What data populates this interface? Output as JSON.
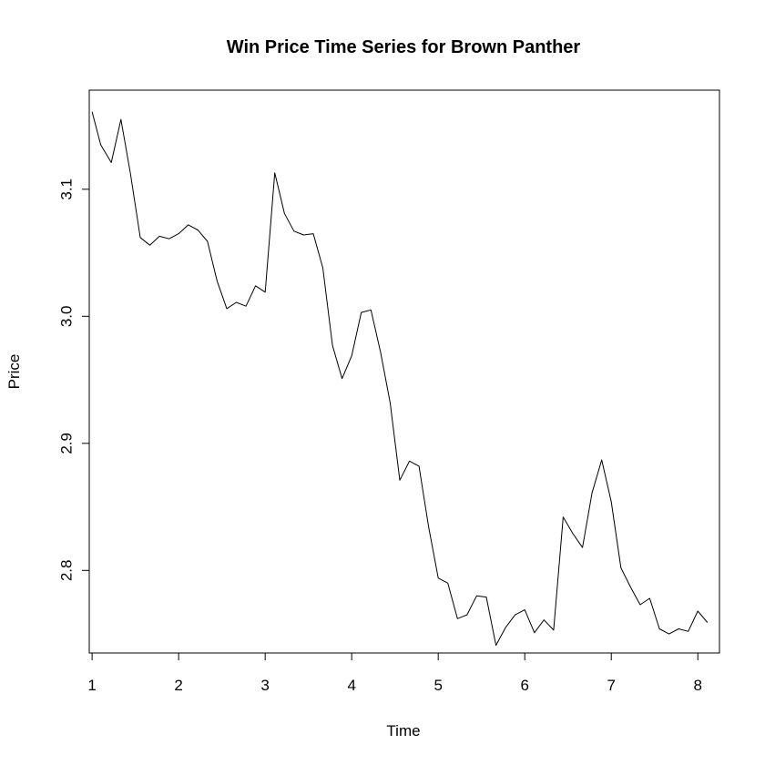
{
  "chart_data": {
    "type": "line",
    "title": "Win Price Time Series for Brown Panther",
    "xlabel": "Time",
    "ylabel": "Price",
    "xlim": [
      0.967,
      8.25
    ],
    "ylim": [
      2.735,
      3.178
    ],
    "xticks": [
      1,
      2,
      3,
      4,
      5,
      6,
      7,
      8
    ],
    "xtick_labels": [
      "1",
      "2",
      "3",
      "4",
      "5",
      "6",
      "7",
      "8"
    ],
    "yticks": [
      2.8,
      2.9,
      3.0,
      3.1
    ],
    "ytick_labels": [
      "2.8",
      "2.9",
      "3.0",
      "3.1"
    ],
    "grid": false,
    "series": [
      {
        "color": "#000000",
        "x": [
          1.0,
          1.1,
          1.222,
          1.333,
          1.444,
          1.556,
          1.667,
          1.778,
          1.889,
          2.0,
          2.111,
          2.222,
          2.333,
          2.444,
          2.556,
          2.667,
          2.778,
          2.889,
          3.0,
          3.111,
          3.222,
          3.333,
          3.444,
          3.556,
          3.667,
          3.778,
          3.889,
          4.0,
          4.111,
          4.222,
          4.333,
          4.444,
          4.556,
          4.667,
          4.778,
          4.889,
          5.0,
          5.111,
          5.222,
          5.333,
          5.444,
          5.556,
          5.667,
          5.778,
          5.889,
          6.0,
          6.111,
          6.222,
          6.333,
          6.444,
          6.556,
          6.667,
          6.778,
          6.889,
          7.0,
          7.111,
          7.222,
          7.333,
          7.444,
          7.556,
          7.667,
          7.778,
          7.889,
          8.0,
          8.111
        ],
        "values": [
          3.161,
          3.135,
          3.121,
          3.155,
          3.112,
          3.062,
          3.056,
          3.063,
          3.061,
          3.065,
          3.072,
          3.068,
          3.059,
          3.028,
          3.006,
          3.011,
          3.008,
          3.024,
          3.019,
          3.113,
          3.081,
          3.067,
          3.064,
          3.065,
          3.038,
          2.977,
          2.951,
          2.969,
          3.003,
          3.005,
          2.972,
          2.932,
          2.871,
          2.886,
          2.882,
          2.834,
          2.794,
          2.79,
          2.762,
          2.765,
          2.78,
          2.779,
          2.741,
          2.755,
          2.765,
          2.769,
          2.751,
          2.761,
          2.753,
          2.842,
          2.829,
          2.818,
          2.861,
          2.887,
          2.854,
          2.802,
          2.787,
          2.773,
          2.778,
          2.754,
          2.75,
          2.754,
          2.752,
          2.768,
          2.759
        ]
      }
    ]
  }
}
